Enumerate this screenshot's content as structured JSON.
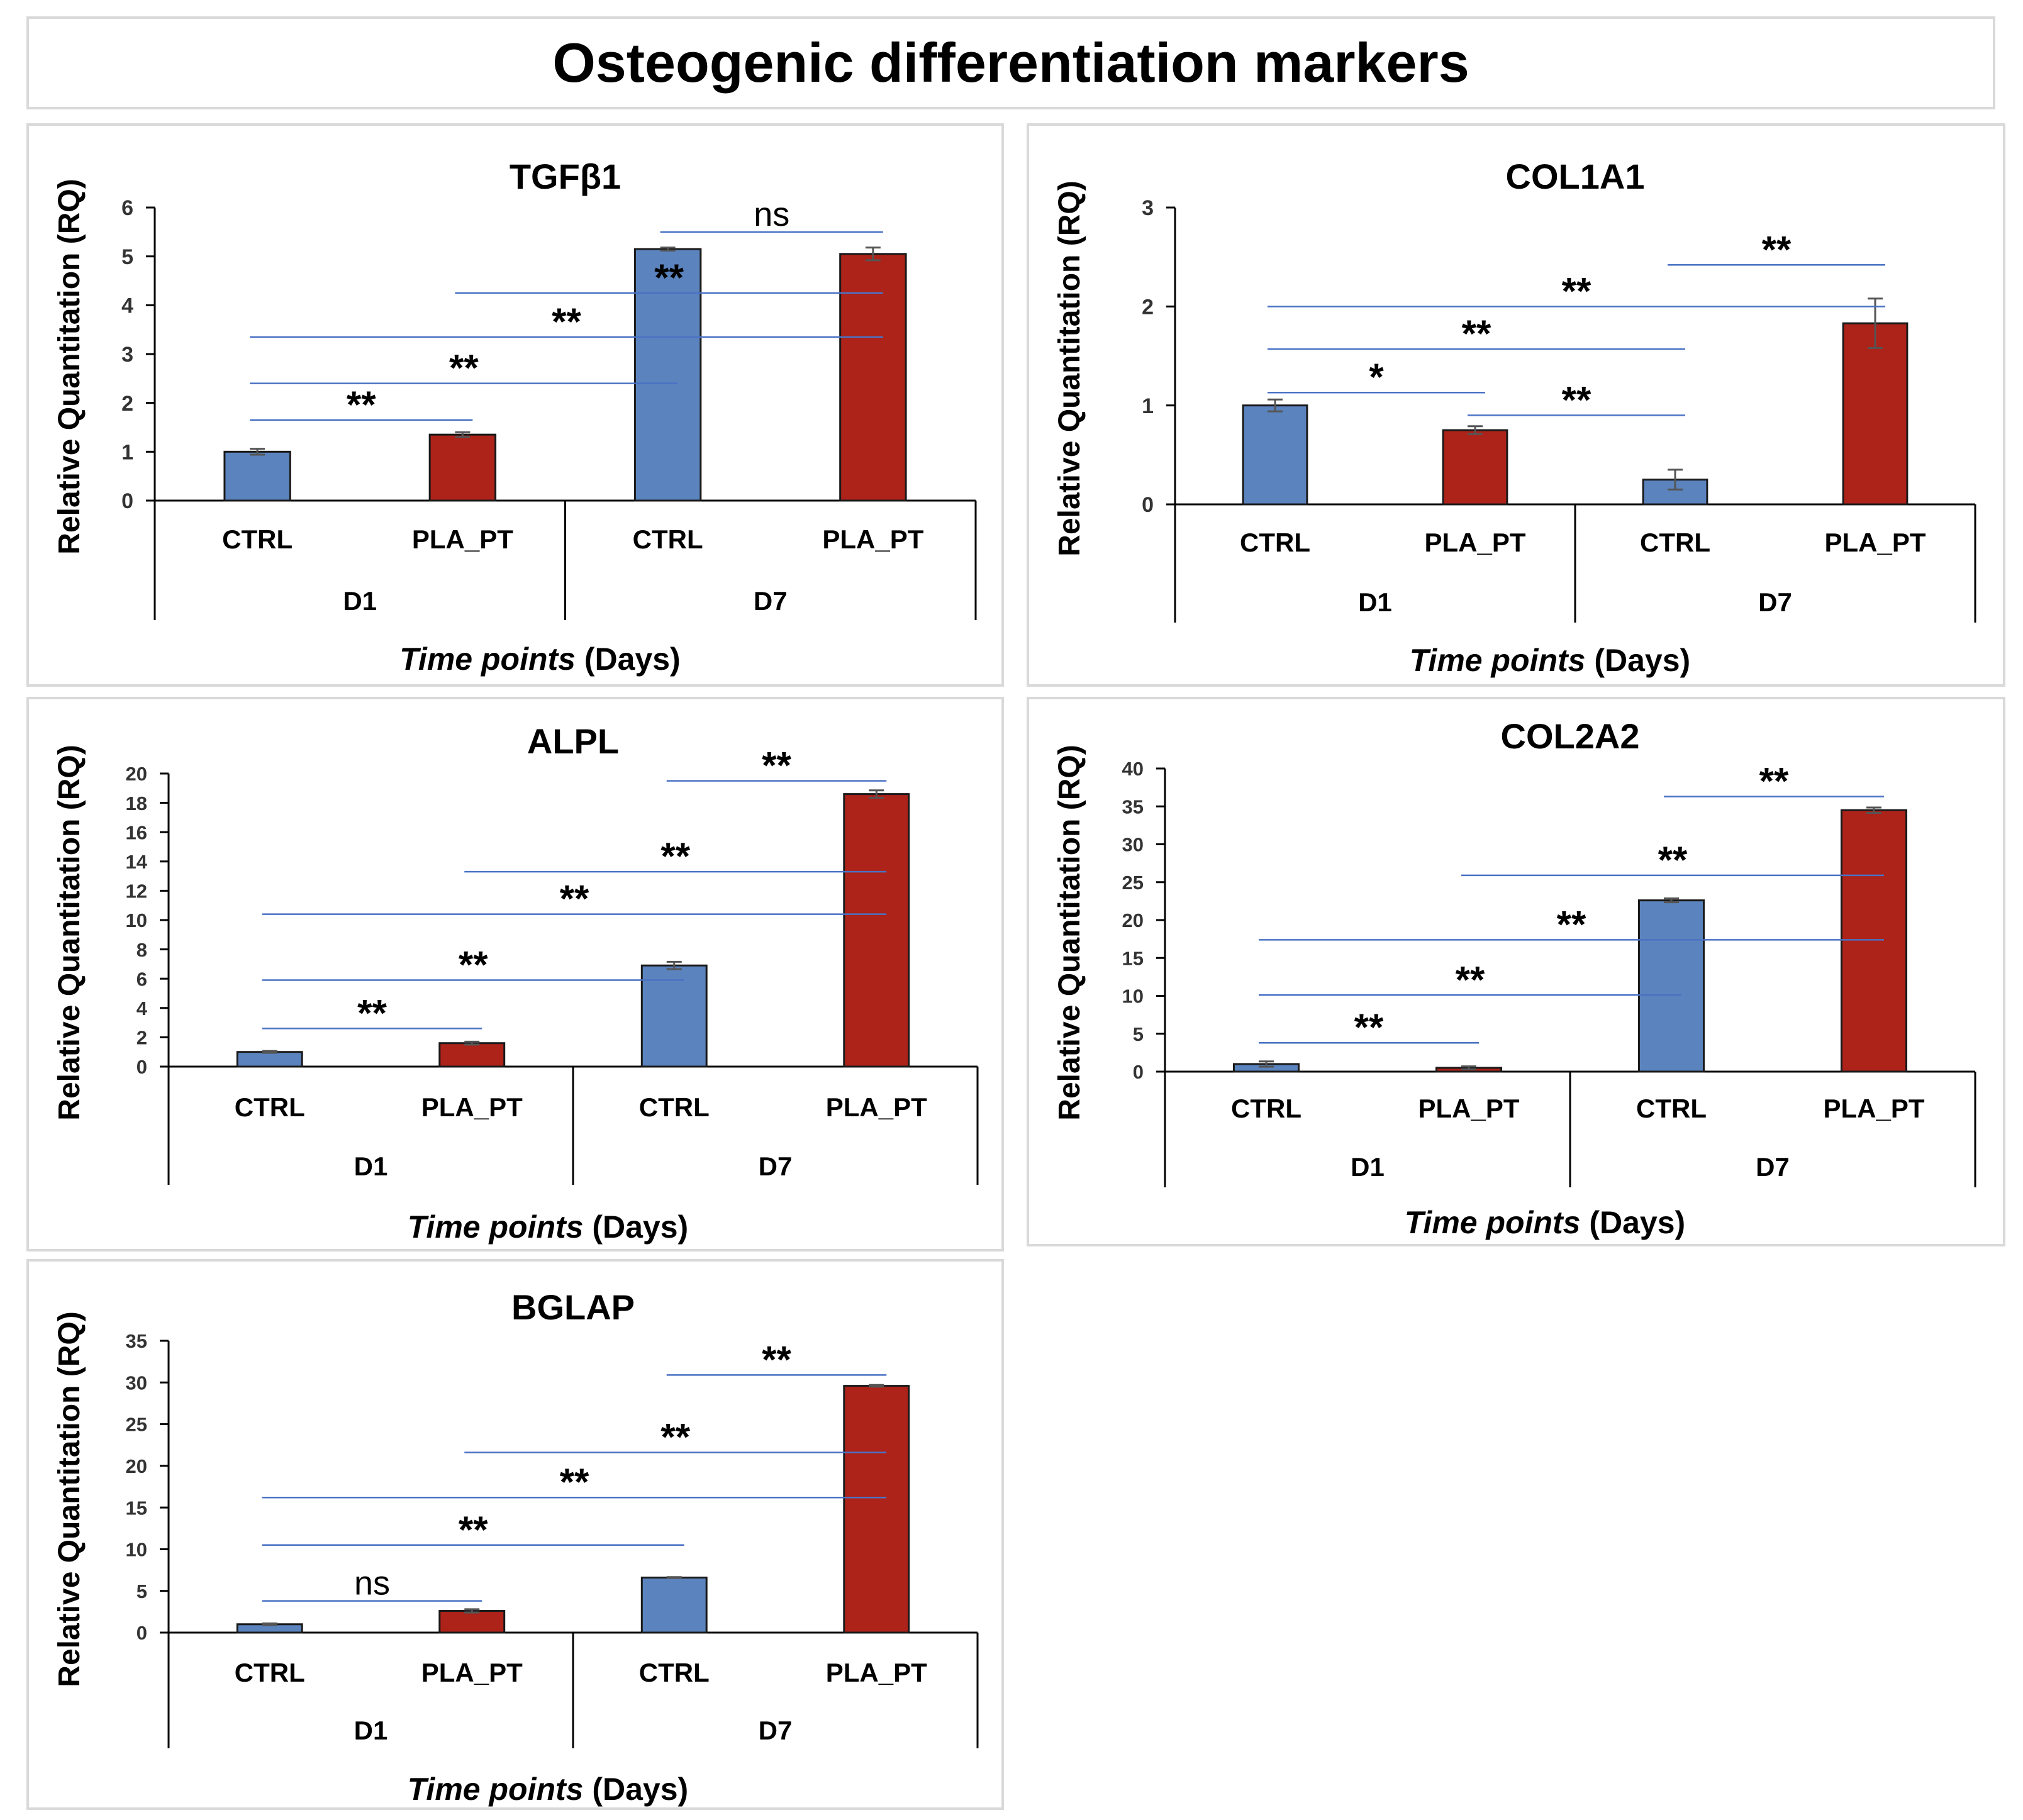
{
  "title": "Osteogenic differentiation markers",
  "colors": {
    "ctrl": "#5b83bd",
    "pla": "#ad2219",
    "sig_line": "#4a72c4",
    "axis": "#000000",
    "panel_border": "#d9d9d9"
  },
  "chart_data": [
    {
      "type": "bar",
      "title": "TGFβ1",
      "ylabel": "Relative Quantitation (RQ)",
      "xlabel_italic": "Time points",
      "xlabel_rest": " (Days)",
      "ylim": [
        0,
        6
      ],
      "yticks": [
        0,
        1,
        2,
        3,
        4,
        5,
        6
      ],
      "groups": [
        "D1",
        "D7"
      ],
      "categories": [
        "CTRL",
        "PLA_PT",
        "CTRL",
        "PLA_PT"
      ],
      "values": [
        1.0,
        1.35,
        5.15,
        5.05
      ],
      "errors": [
        0.06,
        0.05,
        0.03,
        0.13
      ],
      "significance": [
        {
          "from": 0,
          "to": 1,
          "label": "**",
          "y": 1.65
        },
        {
          "from": 0,
          "to": 2,
          "label": "**",
          "y": 2.4
        },
        {
          "from": 0,
          "to": 3,
          "label": "**",
          "y": 3.35
        },
        {
          "from": 1,
          "to": 3,
          "label": "**",
          "y": 4.25
        },
        {
          "from": 2,
          "to": 3,
          "label": "ns",
          "y": 5.5
        }
      ]
    },
    {
      "type": "bar",
      "title": "COL1A1",
      "ylabel": "Relative Quantitation (RQ)",
      "xlabel_italic": "Time points",
      "xlabel_rest": " (Days)",
      "ylim": [
        0,
        3
      ],
      "yticks": [
        0,
        1,
        2,
        3
      ],
      "groups": [
        "D1",
        "D7"
      ],
      "categories": [
        "CTRL",
        "PLA_PT",
        "CTRL",
        "PLA_PT"
      ],
      "values": [
        1.0,
        0.75,
        0.25,
        1.83
      ],
      "errors": [
        0.06,
        0.04,
        0.1,
        0.25
      ],
      "significance": [
        {
          "from": 0,
          "to": 1,
          "label": "*",
          "y": 1.13
        },
        {
          "from": 1,
          "to": 2,
          "label": "**",
          "y": 0.9
        },
        {
          "from": 0,
          "to": 2,
          "label": "**",
          "y": 1.57
        },
        {
          "from": 0,
          "to": 3,
          "label": "**",
          "y": 2.0
        },
        {
          "from": 2,
          "to": 3,
          "label": "**",
          "y": 2.42
        }
      ]
    },
    {
      "type": "bar",
      "title": "ALPL",
      "ylabel": "Relative Quantitation (RQ)",
      "xlabel_italic": "Time points",
      "xlabel_rest": " (Days)",
      "ylim": [
        0,
        20
      ],
      "yticks": [
        0,
        2,
        4,
        6,
        8,
        10,
        12,
        14,
        16,
        18,
        20
      ],
      "groups": [
        "D1",
        "D7"
      ],
      "categories": [
        "CTRL",
        "PLA_PT",
        "CTRL",
        "PLA_PT"
      ],
      "values": [
        1.0,
        1.6,
        6.9,
        18.6
      ],
      "errors": [
        0.06,
        0.1,
        0.25,
        0.25
      ],
      "significance": [
        {
          "from": 0,
          "to": 1,
          "label": "**",
          "y": 2.6
        },
        {
          "from": 0,
          "to": 2,
          "label": "**",
          "y": 5.9
        },
        {
          "from": 0,
          "to": 3,
          "label": "**",
          "y": 10.4
        },
        {
          "from": 1,
          "to": 3,
          "label": "**",
          "y": 13.3
        },
        {
          "from": 2,
          "to": 3,
          "label": "**",
          "y": 19.5
        }
      ]
    },
    {
      "type": "bar",
      "title": "COL2A2",
      "ylabel": "Relative Quantitation (RQ)",
      "xlabel_italic": "Time points",
      "xlabel_rest": " (Days)",
      "ylim": [
        0,
        40
      ],
      "yticks": [
        0,
        5,
        10,
        15,
        20,
        25,
        30,
        35,
        40
      ],
      "groups": [
        "D1",
        "D7"
      ],
      "categories": [
        "CTRL",
        "PLA_PT",
        "CTRL",
        "PLA_PT"
      ],
      "values": [
        1.0,
        0.5,
        22.6,
        34.5
      ],
      "errors": [
        0.35,
        0.2,
        0.25,
        0.35
      ],
      "significance": [
        {
          "from": 0,
          "to": 1,
          "label": "**",
          "y": 3.8
        },
        {
          "from": 0,
          "to": 2,
          "label": "**",
          "y": 10.1
        },
        {
          "from": 0,
          "to": 3,
          "label": "**",
          "y": 17.4
        },
        {
          "from": 1,
          "to": 3,
          "label": "**",
          "y": 25.9
        },
        {
          "from": 2,
          "to": 3,
          "label": "**",
          "y": 36.3
        }
      ]
    },
    {
      "type": "bar",
      "title": "BGLAP",
      "ylabel": "Relative Quantitation (RQ)",
      "xlabel_italic": "Time points",
      "xlabel_rest": " (Days)",
      "ylim": [
        0,
        35
      ],
      "yticks": [
        0,
        5,
        10,
        15,
        20,
        25,
        30,
        35
      ],
      "groups": [
        "D1",
        "D7"
      ],
      "categories": [
        "CTRL",
        "PLA_PT",
        "CTRL",
        "PLA_PT"
      ],
      "values": [
        1.0,
        2.6,
        6.6,
        29.6
      ],
      "errors": [
        0.1,
        0.2,
        0.06,
        0.1
      ],
      "significance": [
        {
          "from": 0,
          "to": 1,
          "label": "ns",
          "y": 3.8
        },
        {
          "from": 0,
          "to": 2,
          "label": "**",
          "y": 10.5
        },
        {
          "from": 0,
          "to": 3,
          "label": "**",
          "y": 16.2
        },
        {
          "from": 1,
          "to": 3,
          "label": "**",
          "y": 21.6
        },
        {
          "from": 2,
          "to": 3,
          "label": "**",
          "y": 30.9
        }
      ]
    }
  ]
}
